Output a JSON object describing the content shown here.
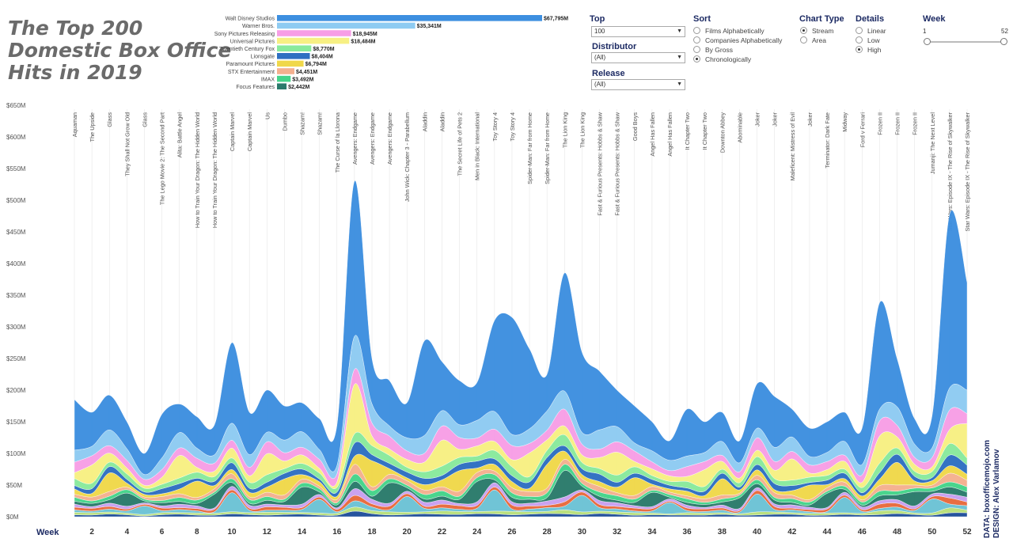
{
  "title_lines": [
    "The Top 200",
    "Domestic Box Office",
    "Hits in 2019"
  ],
  "distributor_bars": [
    {
      "name": "Walt Disney Studios",
      "value": 67795,
      "label": "$67,795M",
      "color": "#3d8fe0"
    },
    {
      "name": "Warner Bros.",
      "value": 35341,
      "label": "$35,341M",
      "color": "#8ecbf2"
    },
    {
      "name": "Sony Pictures Releasing",
      "value": 18945,
      "label": "$18,945M",
      "color": "#f79ee6"
    },
    {
      "name": "Universal Pictures",
      "value": 18484,
      "label": "$18,484M",
      "color": "#f7f083"
    },
    {
      "name": "Twentieth Century Fox",
      "value": 8770,
      "label": "$8,770M",
      "color": "#89ea9c"
    },
    {
      "name": "Lionsgate",
      "value": 8404,
      "label": "$8,404M",
      "color": "#2e6fc2"
    },
    {
      "name": "Paramount Pictures",
      "value": 6794,
      "label": "$6,794M",
      "color": "#f0d84a"
    },
    {
      "name": "STX Entertainment",
      "value": 4451,
      "label": "$4,451M",
      "color": "#f4b08f"
    },
    {
      "name": "IMAX",
      "value": 3492,
      "label": "$3,492M",
      "color": "#45d48a"
    },
    {
      "name": "Focus Features",
      "value": 2442,
      "label": "$2,442M",
      "color": "#2a7a6b"
    }
  ],
  "controls": {
    "top": {
      "label": "Top",
      "value": "100"
    },
    "distributor": {
      "label": "Distributor",
      "value": "(All)"
    },
    "release": {
      "label": "Release",
      "value": "(All)"
    },
    "sort": {
      "label": "Sort",
      "options": [
        "Films Alphabetically",
        "Companies Alphabetically",
        "By Gross",
        "Chronologically"
      ],
      "selected": 3
    },
    "chart_type": {
      "label": "Chart Type",
      "options": [
        "Stream",
        "Area"
      ],
      "selected": 0
    },
    "details": {
      "label": "Details",
      "options": [
        "Linear",
        "Low",
        "High"
      ],
      "selected": 2
    },
    "week": {
      "label": "Week",
      "min": "1",
      "max": "52",
      "range": [
        1,
        52
      ]
    }
  },
  "credits": [
    "DATA: boxofficemojo.com",
    "DESIGN: Alex Varlamov"
  ],
  "chart_data": {
    "type": "area",
    "subtype": "streamgraph",
    "xlabel": "Week",
    "x_ticks": [
      2,
      4,
      6,
      8,
      10,
      12,
      14,
      16,
      18,
      20,
      22,
      24,
      26,
      28,
      30,
      32,
      34,
      36,
      38,
      40,
      42,
      44,
      46,
      48,
      50,
      52
    ],
    "y_ticks": [
      "$0M",
      "$50M",
      "$100M",
      "$150M",
      "$200M",
      "$250M",
      "$300M",
      "$350M",
      "$400M",
      "$450M",
      "$500M",
      "$550M",
      "$600M",
      "$650M"
    ],
    "ylim": [
      0,
      650
    ],
    "xlim": [
      1,
      52
    ],
    "weekly_total_estimate": [
      {
        "week": 1,
        "total": 185
      },
      {
        "week": 2,
        "total": 165
      },
      {
        "week": 3,
        "total": 192
      },
      {
        "week": 4,
        "total": 150
      },
      {
        "week": 5,
        "total": 100
      },
      {
        "week": 6,
        "total": 162
      },
      {
        "week": 7,
        "total": 178
      },
      {
        "week": 8,
        "total": 158
      },
      {
        "week": 9,
        "total": 145
      },
      {
        "week": 10,
        "total": 275
      },
      {
        "week": 11,
        "total": 165
      },
      {
        "week": 12,
        "total": 200
      },
      {
        "week": 13,
        "total": 175
      },
      {
        "week": 14,
        "total": 180
      },
      {
        "week": 15,
        "total": 155
      },
      {
        "week": 16,
        "total": 145
      },
      {
        "week": 17,
        "total": 530
      },
      {
        "week": 18,
        "total": 250
      },
      {
        "week": 19,
        "total": 215
      },
      {
        "week": 20,
        "total": 180
      },
      {
        "week": 21,
        "total": 278
      },
      {
        "week": 22,
        "total": 245
      },
      {
        "week": 23,
        "total": 215
      },
      {
        "week": 24,
        "total": 212
      },
      {
        "week": 25,
        "total": 310
      },
      {
        "week": 26,
        "total": 315
      },
      {
        "week": 27,
        "total": 265
      },
      {
        "week": 28,
        "total": 225
      },
      {
        "week": 29,
        "total": 385
      },
      {
        "week": 30,
        "total": 260
      },
      {
        "week": 31,
        "total": 230
      },
      {
        "week": 32,
        "total": 200
      },
      {
        "week": 33,
        "total": 175
      },
      {
        "week": 34,
        "total": 150
      },
      {
        "week": 35,
        "total": 120
      },
      {
        "week": 36,
        "total": 170
      },
      {
        "week": 37,
        "total": 150
      },
      {
        "week": 38,
        "total": 165
      },
      {
        "week": 39,
        "total": 120
      },
      {
        "week": 40,
        "total": 210
      },
      {
        "week": 41,
        "total": 190
      },
      {
        "week": 42,
        "total": 170
      },
      {
        "week": 43,
        "total": 140
      },
      {
        "week": 44,
        "total": 150
      },
      {
        "week": 45,
        "total": 165
      },
      {
        "week": 46,
        "total": 140
      },
      {
        "week": 47,
        "total": 338
      },
      {
        "week": 48,
        "total": 250
      },
      {
        "week": 49,
        "total": 155
      },
      {
        "week": 50,
        "total": 160
      },
      {
        "week": 51,
        "total": 478
      },
      {
        "week": 52,
        "total": 370
      }
    ],
    "annotations": [
      {
        "week": 1,
        "text": "Aquaman"
      },
      {
        "week": 2,
        "text": "The Upside"
      },
      {
        "week": 3,
        "text": "Glass"
      },
      {
        "week": 4,
        "text": "They Shall Not Grow Old"
      },
      {
        "week": 5,
        "text": "Glass"
      },
      {
        "week": 6,
        "text": "The Lego Movie 2: The Second Part"
      },
      {
        "week": 7,
        "text": "Alita: Battle Angel"
      },
      {
        "week": 8,
        "text": "How to Train Your Dragon: The Hidden World"
      },
      {
        "week": 9,
        "text": "How to Train Your Dragon: The Hidden World"
      },
      {
        "week": 10,
        "text": "Captain Marvel"
      },
      {
        "week": 11,
        "text": "Captain Marvel"
      },
      {
        "week": 12,
        "text": "Us"
      },
      {
        "week": 13,
        "text": "Dumbo"
      },
      {
        "week": 14,
        "text": "Shazam!"
      },
      {
        "week": 15,
        "text": "Shazam!"
      },
      {
        "week": 16,
        "text": "The Curse of la Llorona"
      },
      {
        "week": 17,
        "text": "Avengers: Endgame"
      },
      {
        "week": 18,
        "text": "Avengers: Endgame"
      },
      {
        "week": 19,
        "text": "Avengers: Endgame"
      },
      {
        "week": 20,
        "text": "John Wick: Chapter 3 - Parabellum"
      },
      {
        "week": 21,
        "text": "Aladdin"
      },
      {
        "week": 22,
        "text": "Aladdin"
      },
      {
        "week": 23,
        "text": "The Secret Life of Pets 2"
      },
      {
        "week": 24,
        "text": "Men in Black: International"
      },
      {
        "week": 25,
        "text": "Toy Story 4"
      },
      {
        "week": 26,
        "text": "Toy Story 4"
      },
      {
        "week": 27,
        "text": "Spider-Man: Far from Home"
      },
      {
        "week": 28,
        "text": "Spider-Man: Far from Home"
      },
      {
        "week": 29,
        "text": "The Lion King"
      },
      {
        "week": 30,
        "text": "The Lion King"
      },
      {
        "week": 31,
        "text": "Fast & Furious Presents: Hobbs & Shaw"
      },
      {
        "week": 32,
        "text": "Fast & Furious Presents: Hobbs & Shaw"
      },
      {
        "week": 33,
        "text": "Good Boys"
      },
      {
        "week": 34,
        "text": "Angel Has Fallen"
      },
      {
        "week": 35,
        "text": "Angel Has Fallen"
      },
      {
        "week": 36,
        "text": "It Chapter Two"
      },
      {
        "week": 37,
        "text": "It Chapter Two"
      },
      {
        "week": 38,
        "text": "Downton Abbey"
      },
      {
        "week": 39,
        "text": "Abominable"
      },
      {
        "week": 40,
        "text": "Joker"
      },
      {
        "week": 41,
        "text": "Joker"
      },
      {
        "week": 42,
        "text": "Maleficent: Mistress of Evil"
      },
      {
        "week": 43,
        "text": "Joker"
      },
      {
        "week": 44,
        "text": "Terminator: Dark Fate"
      },
      {
        "week": 45,
        "text": "Midway"
      },
      {
        "week": 46,
        "text": "Ford v Ferrari"
      },
      {
        "week": 47,
        "text": "Frozen II"
      },
      {
        "week": 48,
        "text": "Frozen II"
      },
      {
        "week": 49,
        "text": "Frozen II"
      },
      {
        "week": 50,
        "text": "Jumanji: The Next Level"
      },
      {
        "week": 51,
        "text": "Star Wars: Episode IX - The Rise of Skywalker"
      },
      {
        "week": 52,
        "text": "Star Wars: Episode IX - The Rise of Skywalker"
      }
    ],
    "palette": [
      "#3d8fe0",
      "#8ecbf2",
      "#f79ee6",
      "#f7f083",
      "#89ea9c",
      "#2e6fc2",
      "#f0d84a",
      "#f4b08f",
      "#45d48a",
      "#2a7a6b",
      "#c9a0f0",
      "#e86a3c",
      "#6cc3d5",
      "#b8e07a",
      "#1f4e9a"
    ],
    "grid": false,
    "legend": "none"
  }
}
